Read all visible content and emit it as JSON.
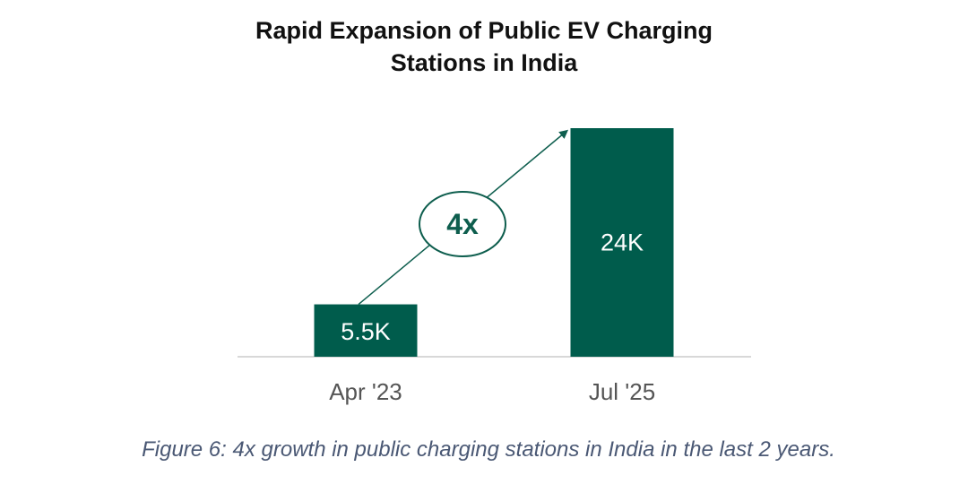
{
  "chart_data": {
    "type": "bar",
    "title_lines": [
      "Rapid Expansion of Public EV Charging",
      "Stations in India"
    ],
    "categories": [
      "Apr '23",
      "Jul '25"
    ],
    "values": [
      5.5,
      24
    ],
    "value_labels": [
      "5.5K",
      "24K"
    ],
    "unit": "thousand stations",
    "ylim": [
      0,
      24
    ],
    "grid": false,
    "annotation": {
      "text": "4x",
      "type": "growth-arrow",
      "from": "Apr '23",
      "to": "Jul '25"
    },
    "caption": "Figure 6: 4x growth in public charging stations in India in the last 2 years."
  },
  "colors": {
    "bar": "#005c4c",
    "arrow": "#0e5e4e",
    "axis": "#cccccc",
    "tick_text": "#555555",
    "caption_text": "#4a5874"
  }
}
